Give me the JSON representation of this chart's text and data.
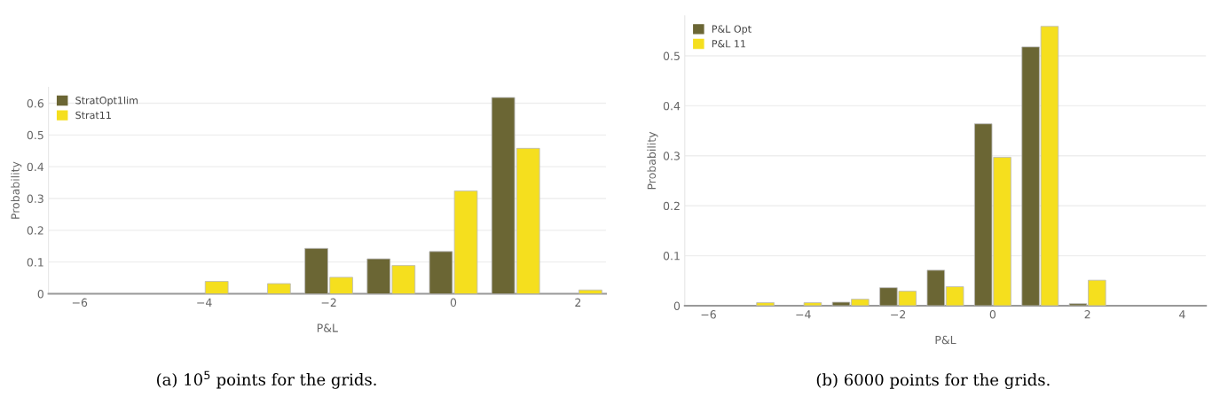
{
  "chart_data": [
    {
      "type": "bar",
      "xlabel": "P&L",
      "ylabel": "Probability",
      "xlim": [
        -6.5,
        2.45
      ],
      "xticks": [
        {
          "value": -6,
          "label": "−6"
        },
        {
          "value": -4,
          "label": "−4"
        },
        {
          "value": -2,
          "label": "−2"
        },
        0,
        2
      ],
      "ylim": [
        0,
        0.65
      ],
      "yticks": [
        0,
        0.1,
        0.2,
        0.3,
        0.4,
        0.5,
        0.6
      ],
      "grid": "y",
      "legend": "top left",
      "x": [
        -4,
        -3,
        -2,
        -1,
        0,
        1,
        2
      ],
      "series": [
        {
          "name": "StratOpt1lim",
          "color": "#6b6634",
          "values": [
            null,
            null,
            0.143,
            0.11,
            0.133,
            0.618,
            null
          ]
        },
        {
          "name": "Strat11",
          "color": "#f5df1e",
          "values": [
            0.039,
            0.032,
            0.052,
            0.089,
            0.324,
            0.458,
            0.012
          ]
        }
      ],
      "annotations": [
        "(a) 10$^{5}$ points for the grids."
      ]
    },
    {
      "type": "bar",
      "xlabel": "P&L",
      "ylabel": "Probability",
      "xlim": [
        -6.5,
        4.5
      ],
      "xticks": [
        {
          "value": -6,
          "label": "−6"
        },
        {
          "value": -4,
          "label": "−4"
        },
        {
          "value": -2,
          "label": "−2"
        },
        0,
        2,
        4
      ],
      "ylim": [
        0,
        0.58
      ],
      "yticks": [
        0,
        0.1,
        0.2,
        0.3,
        0.4,
        0.5
      ],
      "grid": "y",
      "legend": "top left",
      "x": [
        -5,
        -4,
        -3,
        -2,
        -1,
        0,
        1,
        2
      ],
      "series": [
        {
          "name": "P&L Opt",
          "color": "#6b6634",
          "values": [
            null,
            null,
            0.007,
            0.036,
            0.071,
            0.364,
            0.518,
            0.004
          ]
        },
        {
          "name": "P&L 11",
          "color": "#f5df1e",
          "values": [
            0.006,
            0.006,
            0.013,
            0.029,
            0.038,
            0.297,
            0.559,
            0.051
          ]
        }
      ],
      "annotations": [
        "(b) 6000 points for the grids."
      ]
    }
  ]
}
